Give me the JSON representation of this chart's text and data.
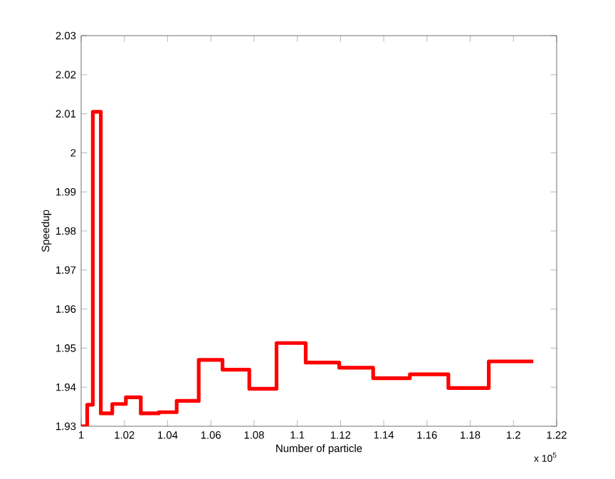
{
  "chart_data": {
    "type": "step",
    "xlabel": "Number of particle",
    "ylabel": "Speedup",
    "annotations": [
      "x 10$^{5}$"
    ],
    "x": [
      1.0,
      1.0028,
      1.0054,
      1.0091,
      1.0144,
      1.0207,
      1.0276,
      1.0359,
      1.0442,
      1.0544,
      1.0654,
      1.0778,
      1.0904,
      1.1039,
      1.1194,
      1.1351,
      1.1521,
      1.1699,
      1.1886,
      1.2092
    ],
    "series": [
      {
        "color": "#ff0000",
        "values": [
          1.93,
          1.9355,
          2.0105,
          1.9333,
          1.9357,
          1.9374,
          1.9333,
          1.9336,
          1.9365,
          1.947,
          1.9445,
          1.9396,
          1.9513,
          1.9463,
          1.945,
          1.9423,
          1.9433,
          1.9398,
          1.9466,
          1.9466
        ]
      }
    ],
    "xlim": [
      1,
      1.22
    ],
    "xticks": [
      1,
      1.02,
      1.04,
      1.06,
      1.08,
      1.1,
      1.12,
      1.14,
      1.16,
      1.18,
      1.2,
      1.22
    ],
    "ylim": [
      1.93,
      2.03
    ],
    "yticks": [
      1.93,
      1.94,
      1.95,
      1.96,
      1.97,
      1.98,
      1.99,
      2,
      2.01,
      2.02,
      2.03
    ],
    "grid": false,
    "line_style": "solid",
    "marker": "none"
  }
}
